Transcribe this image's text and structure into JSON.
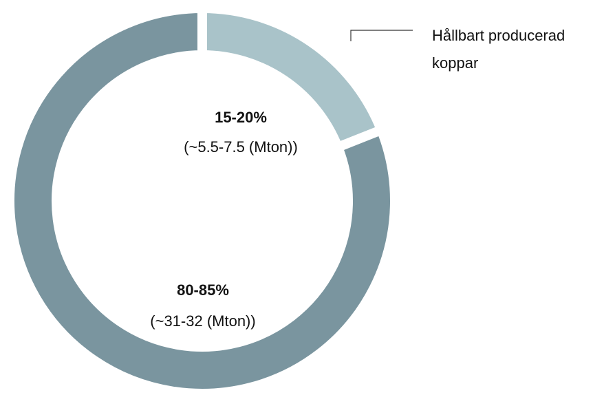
{
  "chart_data": {
    "type": "donut",
    "categories": [
      "Hållbart producerad koppar",
      null
    ],
    "values": [
      19,
      81
    ],
    "value_labels": [
      "15-20%",
      "80-85%"
    ],
    "sublabels": [
      "(~5.5-7.5 (Mton))",
      "(~31-32 (Mton))"
    ],
    "colors": [
      "#a9c3c9",
      "#7a959f"
    ]
  }
}
